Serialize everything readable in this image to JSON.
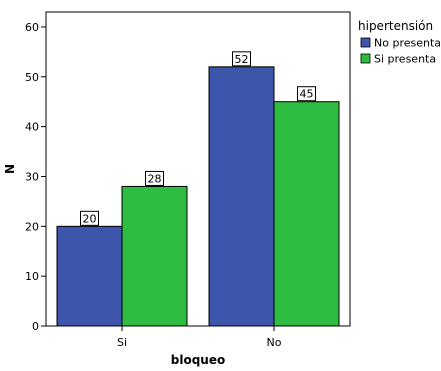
{
  "chart_data": {
    "type": "bar",
    "xlabel": "bloqueo",
    "ylabel": "N",
    "categories": [
      "Si",
      "No"
    ],
    "series": [
      {
        "name": "No presenta",
        "values": [
          20,
          52
        ],
        "color": "#3d55aa"
      },
      {
        "name": "Si presenta",
        "values": [
          28,
          45
        ],
        "color": "#2ebc41"
      }
    ],
    "ylim": [
      0,
      63
    ],
    "yticks": [
      0,
      10,
      20,
      30,
      40,
      50,
      60
    ],
    "grid": false,
    "data_labels": true,
    "legend": {
      "title": "hipertensión",
      "placement": "top-right"
    }
  }
}
